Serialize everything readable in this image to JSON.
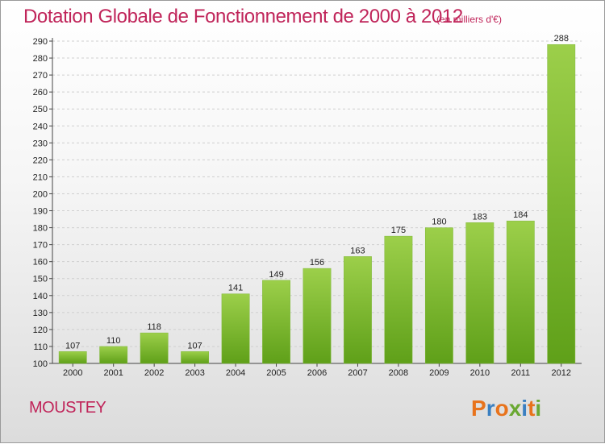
{
  "header": {
    "title": "Dotation Globale de Fonctionnement de 2000 à 2012",
    "subtitle": "(en milliers d'€)"
  },
  "footer": {
    "commune": "MOUSTEY",
    "logo_text": "Proxiti"
  },
  "colors": {
    "title": "#c0255a",
    "bar_top": "#9ccf4a",
    "bar_bottom": "#5fa019",
    "logo_letters": [
      "#e8731c",
      "#3a7fc1",
      "#e8731c",
      "#6aa832",
      "#3a7fc1",
      "#e8731c",
      "#6aa832"
    ]
  },
  "chart_data": {
    "type": "bar",
    "title": "Dotation Globale de Fonctionnement de 2000 à 2012",
    "subtitle": "(en milliers d'€)",
    "categories": [
      "2000",
      "2001",
      "2002",
      "2003",
      "2004",
      "2005",
      "2006",
      "2007",
      "2008",
      "2009",
      "2010",
      "2011",
      "2012"
    ],
    "values": [
      107,
      110,
      118,
      107,
      141,
      149,
      156,
      163,
      175,
      180,
      183,
      184,
      288
    ],
    "ylim": [
      100,
      290
    ],
    "yticks": [
      100,
      110,
      120,
      130,
      140,
      150,
      160,
      170,
      180,
      190,
      200,
      210,
      220,
      230,
      240,
      250,
      260,
      270,
      280,
      290
    ],
    "grid": true,
    "xlabel": "",
    "ylabel": ""
  }
}
